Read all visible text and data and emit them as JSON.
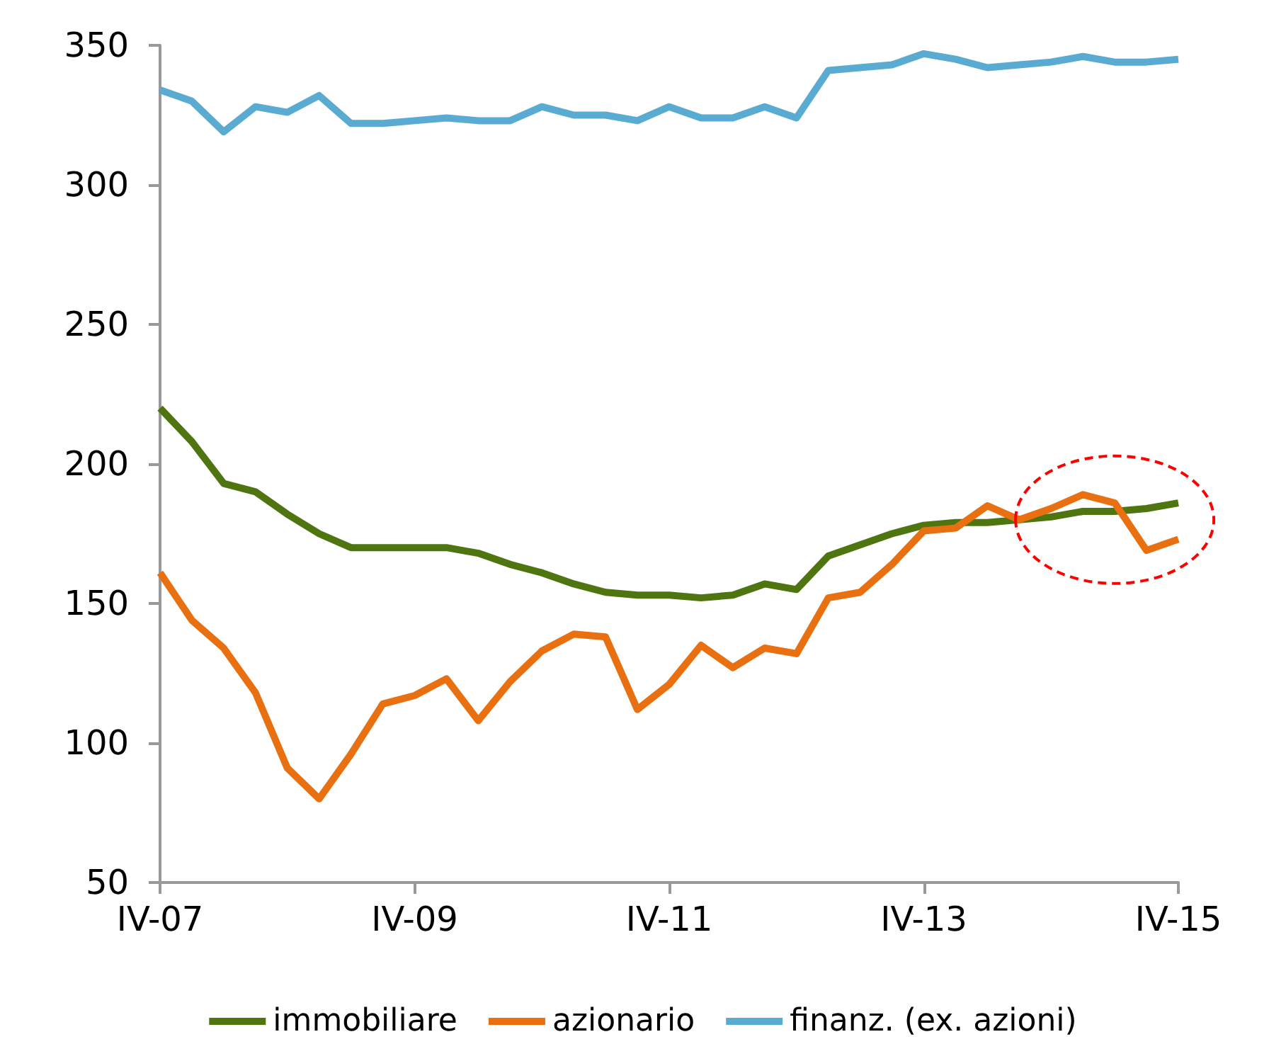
{
  "chart_data": {
    "type": "line",
    "categories": [
      "IV-07",
      null,
      null,
      null,
      null,
      null,
      null,
      null,
      "IV-09",
      null,
      null,
      null,
      null,
      null,
      null,
      null,
      "IV-11",
      null,
      null,
      null,
      null,
      null,
      null,
      null,
      "IV-13",
      null,
      null,
      null,
      null,
      null,
      null,
      null,
      "IV-15"
    ],
    "ylim": [
      50,
      350
    ],
    "yticks": [
      50,
      100,
      150,
      200,
      250,
      300,
      350
    ],
    "grid": false,
    "legend": "bottom",
    "marker": "none",
    "line_style": "solid",
    "series": [
      {
        "name": "immobiliare",
        "color": "#4e7510",
        "values": [
          220,
          208,
          193,
          190,
          182,
          175,
          170,
          170,
          170,
          170,
          168,
          164,
          161,
          157,
          154,
          153,
          153,
          152,
          153,
          157,
          155,
          167,
          171,
          175,
          178,
          179,
          179,
          180,
          181,
          183,
          183,
          184,
          186
        ]
      },
      {
        "name": "azionario",
        "color": "#e87011",
        "values": [
          161,
          144,
          134,
          118,
          91,
          80,
          96,
          114,
          117,
          123,
          108,
          122,
          133,
          139,
          138,
          112,
          121,
          135,
          127,
          134,
          132,
          152,
          154,
          164,
          176,
          177,
          185,
          180,
          184,
          189,
          186,
          169,
          173
        ]
      },
      {
        "name": "finanz. (ex. azioni)",
        "color": "#5aabd2",
        "values": [
          334,
          330,
          319,
          328,
          326,
          332,
          322,
          322,
          323,
          324,
          323,
          323,
          328,
          325,
          325,
          323,
          328,
          324,
          324,
          328,
          324,
          341,
          342,
          343,
          347,
          345,
          342,
          343,
          344,
          346,
          344,
          344,
          345
        ]
      }
    ]
  }
}
